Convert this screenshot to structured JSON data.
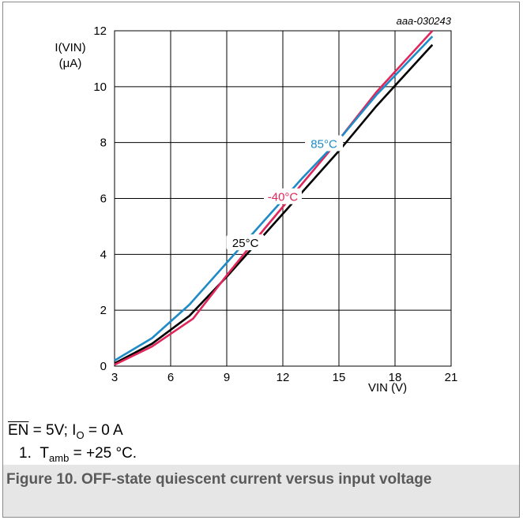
{
  "chart_data": {
    "type": "line",
    "id_label": "aaa-030243",
    "ylabel": "I(VIN)",
    "ylabel_unit": "(μA)",
    "xlabel": "VIN (V)",
    "xlim": [
      3,
      21
    ],
    "ylim": [
      0,
      12
    ],
    "xticks": [
      3,
      6,
      9,
      12,
      15,
      18,
      21
    ],
    "yticks": [
      0,
      2,
      4,
      6,
      8,
      10,
      12
    ],
    "grid": true,
    "series": [
      {
        "name": "25°C",
        "color": "#000000",
        "x": [
          3,
          5,
          7,
          9,
          11,
          13,
          15,
          17,
          20
        ],
        "y": [
          0.1,
          0.8,
          1.8,
          3.2,
          4.7,
          6.2,
          7.7,
          9.3,
          11.5
        ]
      },
      {
        "name": "-40°C",
        "color": "#e0265a",
        "x": [
          3,
          5,
          7.2,
          9,
          11,
          13,
          15,
          17,
          20
        ],
        "y": [
          0.05,
          0.7,
          1.7,
          3.25,
          4.9,
          6.5,
          8.1,
          9.8,
          12.0
        ]
      },
      {
        "name": "85°C",
        "color": "#1e8bc8",
        "x": [
          3,
          5,
          7,
          9,
          11,
          13,
          15,
          17,
          20
        ],
        "y": [
          0.2,
          1.0,
          2.2,
          3.7,
          5.2,
          6.7,
          8.1,
          9.7,
          11.8
        ]
      }
    ],
    "annotations": [
      {
        "text": "85°C",
        "x": 14.2,
        "y": 7.95,
        "color": "#1e8bc8"
      },
      {
        "text": "-40°C",
        "x": 12.0,
        "y": 6.05,
        "color": "#e0265a"
      },
      {
        "text": "25°C",
        "x": 10.0,
        "y": 4.4,
        "color": "#000000"
      }
    ]
  },
  "notes": {
    "condition_en": "EN",
    "condition_rest": " = 5V; I",
    "condition_sub": "O",
    "condition_end": " = 0 A",
    "footnote_num": "1.",
    "footnote_t": "T",
    "footnote_sub": "amb",
    "footnote_rest": " = +25 °C."
  },
  "caption": "Figure 10.  OFF-state quiescent current versus input voltage"
}
